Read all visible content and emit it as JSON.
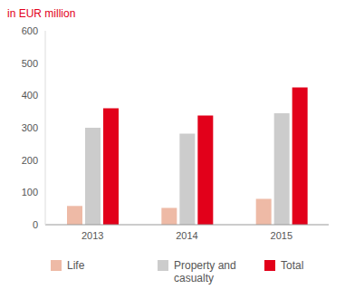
{
  "chart_data": {
    "type": "bar",
    "title": "in EUR million",
    "categories": [
      "2013",
      "2014",
      "2015"
    ],
    "series": [
      {
        "name": "Life",
        "color": "#eebaa6",
        "values": [
          58,
          52,
          80
        ]
      },
      {
        "name": "Property and casualty",
        "color": "#cccccc",
        "values": [
          300,
          282,
          345
        ]
      },
      {
        "name": "Total",
        "color": "#e2001a",
        "values": [
          360,
          338,
          425
        ]
      }
    ],
    "ylim": [
      0,
      600
    ],
    "yticks": [
      0,
      100,
      200,
      300,
      400,
      500,
      600
    ],
    "grid": false,
    "legend": "bottom"
  }
}
